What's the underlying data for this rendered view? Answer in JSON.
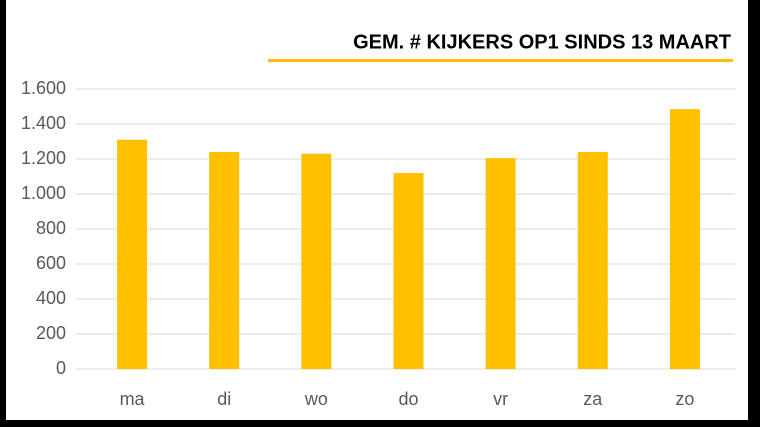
{
  "chart_data": {
    "type": "bar",
    "title": "GEM. # KIJKERS OP1 SINDS 13 MAART",
    "categories": [
      "ma",
      "di",
      "wo",
      "do",
      "vr",
      "za",
      "zo"
    ],
    "values": [
      1310,
      1240,
      1230,
      1120,
      1205,
      1240,
      1485
    ],
    "color": "#ffc000",
    "ylim": [
      0,
      1600
    ],
    "yticks": [
      0,
      200,
      400,
      600,
      800,
      {
        "value": 1000,
        "label": "1.000"
      },
      {
        "value": 1200,
        "label": "1.200"
      },
      {
        "value": 1400,
        "label": "1.400"
      },
      {
        "value": 1600,
        "label": "1.600"
      }
    ],
    "grid": true
  }
}
